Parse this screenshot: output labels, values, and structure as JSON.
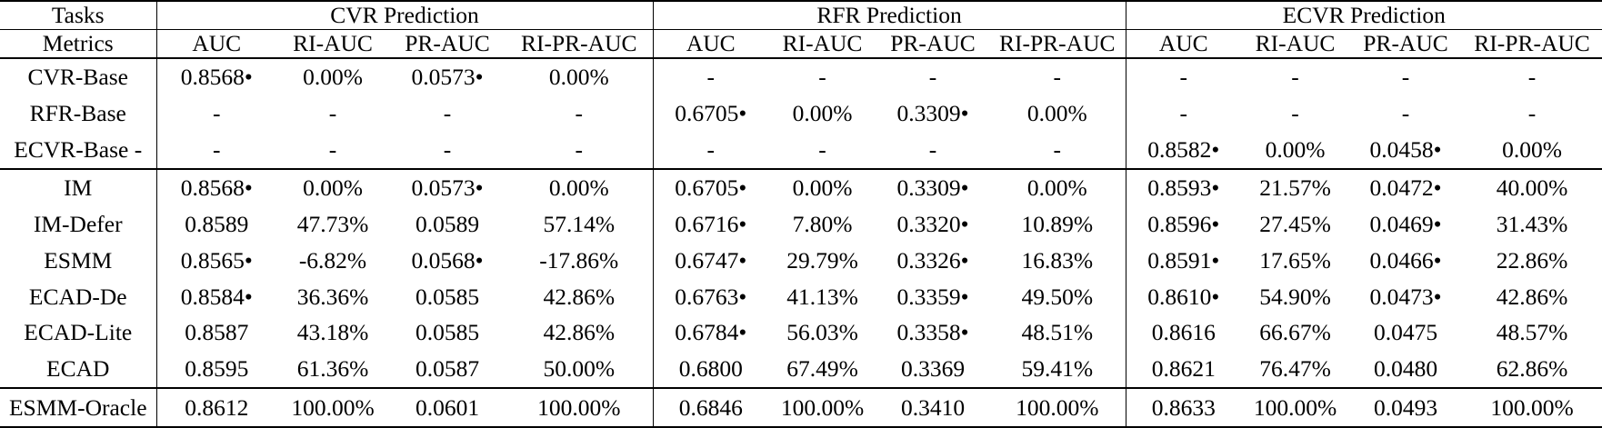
{
  "table": {
    "tasks_header": "Tasks",
    "metrics_header": "Metrics",
    "groups": [
      {
        "id": "cvr",
        "label": "CVR Prediction"
      },
      {
        "id": "rfr",
        "label": "RFR Prediction"
      },
      {
        "id": "ecvr",
        "label": "ECVR Prediction"
      }
    ],
    "metric_headers": [
      "AUC",
      "RI-AUC",
      "PR-AUC",
      "RI-PR-AUC"
    ],
    "rows": [
      {
        "task": "CVR-Base",
        "cells": [
          "0.8568•",
          "0.00%",
          "0.0573•",
          "0.00%",
          "-",
          "-",
          "-",
          "-",
          "-",
          "-",
          "-",
          "-"
        ],
        "bold": [],
        "rule_above": false
      },
      {
        "task": "RFR-Base",
        "cells": [
          "-",
          "-",
          "-",
          "-",
          "0.6705•",
          "0.00%",
          "0.3309•",
          "0.00%",
          "-",
          "-",
          "-",
          "-"
        ],
        "bold": [],
        "rule_above": false
      },
      {
        "task": "ECVR-Base -",
        "cells": [
          "-",
          "-",
          "-",
          "-",
          "-",
          "-",
          "-",
          "-",
          "0.8582•",
          "0.00%",
          "0.0458•",
          "0.00%"
        ],
        "bold": [],
        "rule_above": false
      },
      {
        "task": "IM",
        "cells": [
          "0.8568•",
          "0.00%",
          "0.0573•",
          "0.00%",
          "0.6705•",
          "0.00%",
          "0.3309•",
          "0.00%",
          "0.8593•",
          "21.57%",
          "0.0472•",
          "40.00%"
        ],
        "bold": [],
        "rule_above": true
      },
      {
        "task": "IM-Defer",
        "cells": [
          "0.8589",
          "47.73%",
          "0.0589",
          "57.14%",
          "0.6716•",
          "7.80%",
          "0.3320•",
          "10.89%",
          "0.8596•",
          "27.45%",
          "0.0469•",
          "31.43%"
        ],
        "bold": [
          2,
          3
        ],
        "rule_above": false
      },
      {
        "task": "ESMM",
        "cells": [
          "0.8565•",
          "-6.82%",
          "0.0568•",
          "-17.86%",
          "0.6747•",
          "29.79%",
          "0.3326•",
          "16.83%",
          "0.8591•",
          "17.65%",
          "0.0466•",
          "22.86%"
        ],
        "bold": [],
        "rule_above": false
      },
      {
        "task": "ECAD-De",
        "cells": [
          "0.8584•",
          "36.36%",
          "0.0585",
          "42.86%",
          "0.6763•",
          "41.13%",
          "0.3359•",
          "49.50%",
          "0.8610•",
          "54.90%",
          "0.0473•",
          "42.86%"
        ],
        "bold": [],
        "rule_above": false
      },
      {
        "task": "ECAD-Lite",
        "cells": [
          "0.8587",
          "43.18%",
          "0.0585",
          "42.86%",
          "0.6784•",
          "56.03%",
          "0.3358•",
          "48.51%",
          "0.8616",
          "66.67%",
          "0.0475",
          "48.57%"
        ],
        "bold": [],
        "rule_above": false
      },
      {
        "task": "ECAD",
        "cells": [
          "0.8595",
          "61.36%",
          "0.0587",
          "50.00%",
          "0.6800",
          "67.49%",
          "0.3369",
          "59.41%",
          "0.8621",
          "76.47%",
          "0.0480",
          "62.86%"
        ],
        "bold": [
          0,
          1,
          4,
          5,
          6,
          7,
          8,
          9,
          10,
          11
        ],
        "rule_above": false
      },
      {
        "task": "ESMM-Oracle",
        "cells": [
          "0.8612",
          "100.00%",
          "0.0601",
          "100.00%",
          "0.6846",
          "100.00%",
          "0.3410",
          "100.00%",
          "0.8633",
          "100.00%",
          "0.0493",
          "100.00%"
        ],
        "bold": [],
        "rule_above": true
      }
    ]
  },
  "colors": {
    "text": "#000000",
    "background": "#ffffff",
    "rule": "#000000"
  }
}
